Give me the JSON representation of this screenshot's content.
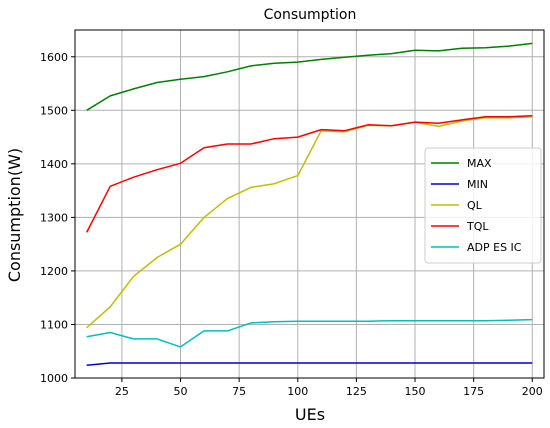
{
  "chart_data": {
    "type": "line",
    "title": "Consumption",
    "xlabel": "UEs",
    "ylabel": "Consumption(W)",
    "xlim": [
      5,
      205
    ],
    "ylim": [
      1000,
      1650
    ],
    "xticks": [
      25,
      50,
      75,
      100,
      125,
      150,
      175,
      200
    ],
    "yticks": [
      1000,
      1100,
      1200,
      1300,
      1400,
      1500,
      1600
    ],
    "grid": true,
    "legend_position": "center-right",
    "x": [
      10,
      20,
      30,
      40,
      50,
      60,
      70,
      80,
      90,
      100,
      110,
      120,
      130,
      140,
      150,
      160,
      170,
      180,
      190,
      200
    ],
    "series": [
      {
        "name": "MAX",
        "color": "#008000",
        "values": [
          1500,
          1527,
          1540,
          1552,
          1558,
          1563,
          1572,
          1583,
          1588,
          1590,
          1595,
          1599,
          1603,
          1606,
          1612,
          1611,
          1616,
          1617,
          1620,
          1625
        ]
      },
      {
        "name": "MIN",
        "color": "#0000cc",
        "values": [
          1024,
          1028,
          1028,
          1028,
          1028,
          1028,
          1028,
          1028,
          1028,
          1028,
          1028,
          1028,
          1028,
          1028,
          1028,
          1028,
          1028,
          1028,
          1028,
          1028
        ]
      },
      {
        "name": "QL",
        "color": "#bfbf00",
        "values": [
          1094,
          1133,
          1190,
          1225,
          1250,
          1300,
          1335,
          1356,
          1363,
          1378,
          1462,
          1460,
          1472,
          1471,
          1478,
          1470,
          1480,
          1486,
          1486,
          1488
        ]
      },
      {
        "name": "TQL",
        "color": "#ff0000",
        "values": [
          1272,
          1358,
          1375,
          1389,
          1401,
          1430,
          1437,
          1437,
          1447,
          1450,
          1464,
          1462,
          1473,
          1471,
          1478,
          1476,
          1482,
          1488,
          1488,
          1490
        ]
      },
      {
        "name": "ADP ES IC",
        "color": "#00bfbf",
        "values": [
          1077,
          1085,
          1073,
          1073,
          1058,
          1088,
          1088,
          1103,
          1105,
          1106,
          1106,
          1106,
          1106,
          1107,
          1107,
          1107,
          1107,
          1107,
          1108,
          1109
        ]
      }
    ]
  }
}
